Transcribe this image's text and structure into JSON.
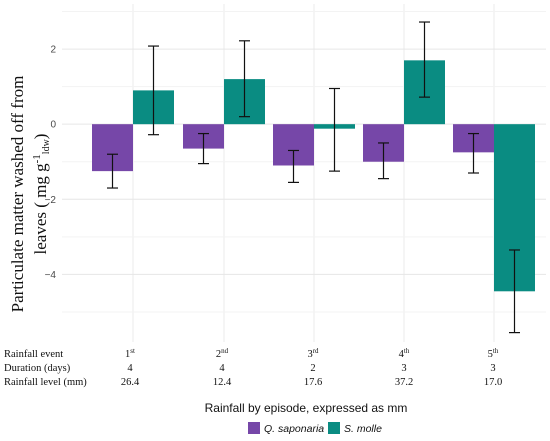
{
  "chart_data": {
    "type": "bar",
    "ylabel_line1": "Particulate matter washed off from",
    "ylabel_line2_main": "leaves ( mg g",
    "ylabel_sup": "-1",
    "ylabel_sub": "ldw",
    "ylabel_close": ")",
    "xlabel": "Rainfall by episode, expressed as mm",
    "categories": [
      "1",
      "2",
      "3",
      "4",
      "5"
    ],
    "category_suffix": [
      "st",
      "nd",
      "rd",
      "th",
      "th"
    ],
    "ylim": [
      -5.8,
      3.2
    ],
    "yticks": [
      -4,
      -2,
      0,
      2
    ],
    "ytick_labels": [
      "−4",
      "−2",
      "0",
      "2"
    ],
    "grid": true,
    "legend_position": "bottom",
    "series": [
      {
        "name": "Q. saponaria",
        "color": "#7647a8",
        "values": [
          -1.25,
          -0.65,
          -1.1,
          -1.0,
          -0.75
        ],
        "err_low": [
          -1.7,
          -1.05,
          -1.55,
          -1.45,
          -1.3
        ],
        "err_high": [
          -0.8,
          -0.25,
          -0.7,
          -0.5,
          -0.25
        ]
      },
      {
        "name": "S. molle",
        "color": "#0a8c82",
        "values": [
          0.9,
          1.2,
          -0.12,
          1.7,
          -4.45
        ],
        "err_low": [
          -0.28,
          0.2,
          -1.25,
          0.72,
          -5.55
        ],
        "err_high": [
          2.08,
          2.22,
          0.95,
          2.72,
          -3.35
        ]
      }
    ],
    "table": {
      "rows": [
        {
          "label": "Rainfall event",
          "values": [
            "1",
            "2",
            "3",
            "4",
            "5"
          ],
          "sup": [
            "st",
            "nd",
            "rd",
            "th",
            "th"
          ]
        },
        {
          "label": "Duration (days)",
          "values": [
            "4",
            "4",
            "2",
            "3",
            "3"
          ]
        },
        {
          "label": "Rainfall level (mm)",
          "values": [
            "26.4",
            "12.4",
            "17.6",
            "37.2",
            "17.0"
          ]
        }
      ]
    }
  }
}
